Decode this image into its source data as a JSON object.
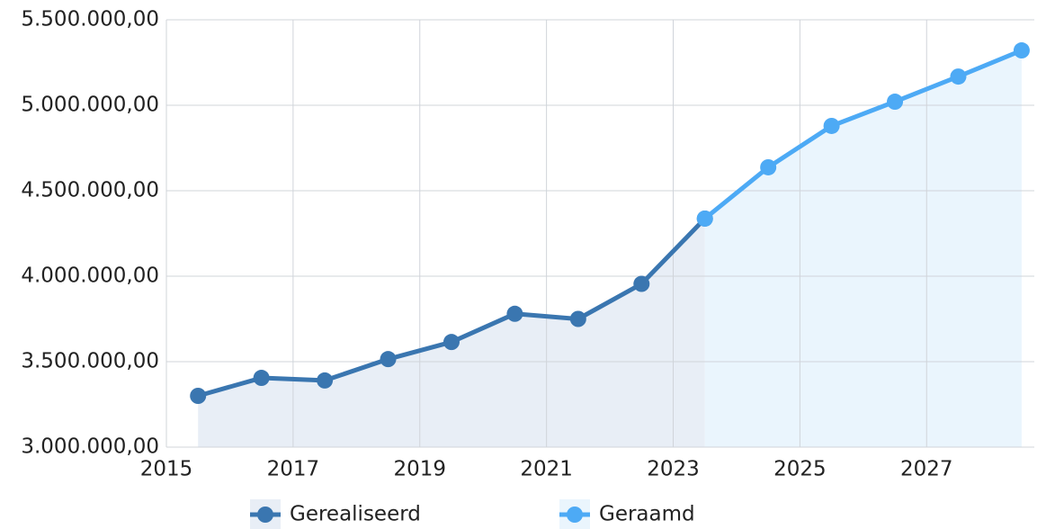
{
  "chart_data": {
    "type": "line",
    "xlim": [
      2015,
      2028.7
    ],
    "xticks": [
      2015,
      2017,
      2019,
      2021,
      2023,
      2025,
      2027
    ],
    "ylim": [
      3000000,
      5500000
    ],
    "yticks": [
      {
        "value": 3000000,
        "label": "3.000.000,00"
      },
      {
        "value": 3500000,
        "label": "3.500.000,00"
      },
      {
        "value": 4000000,
        "label": "4.000.000,00"
      },
      {
        "value": 4500000,
        "label": "4.500.000,00"
      },
      {
        "value": 5000000,
        "label": "5.000.000,00"
      },
      {
        "value": 5500000,
        "label": "5.500.000,00"
      }
    ],
    "grid": true,
    "legend": "bottom",
    "series": [
      {
        "name": "Gerealiseerd",
        "color": "#3a76b0",
        "area_color": "#e8eef6",
        "x": [
          2015.5,
          2016.5,
          2017.5,
          2018.5,
          2019.5,
          2020.5,
          2021.5,
          2022.5,
          2023.5
        ],
        "values": [
          3300000,
          3405000,
          3390000,
          3515000,
          3615000,
          3780000,
          3750000,
          3955000,
          4337000
        ]
      },
      {
        "name": "Geraamd",
        "color": "#4daaf5",
        "area_color": "#eaf5fd",
        "x": [
          2023.5,
          2024.5,
          2025.5,
          2026.5,
          2027.5,
          2028.5
        ],
        "values": [
          4337000,
          4637000,
          4879000,
          5021000,
          5168000,
          5321000
        ]
      }
    ]
  }
}
